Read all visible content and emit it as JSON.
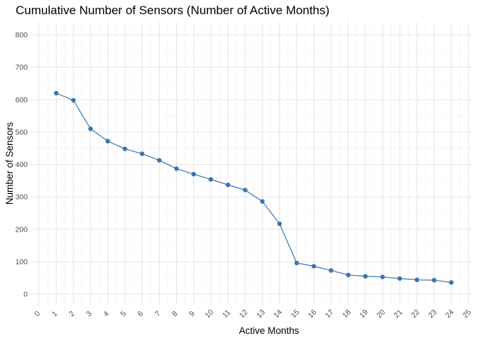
{
  "chart_data": {
    "type": "line",
    "title": "Cumulative Number of Sensors (Number of Active Months)",
    "xlabel": "Active Months",
    "ylabel": "Number of Sensors",
    "xlim": [
      0,
      25
    ],
    "ylim": [
      -30,
      840
    ],
    "x_ticks": [
      "0",
      "1",
      "2",
      "3",
      "4",
      "5",
      "6",
      "7",
      "8",
      "9",
      "10",
      "11",
      "12",
      "13",
      "14",
      "15",
      "16",
      "17",
      "18",
      "19",
      "20",
      "21",
      "22",
      "23",
      "24",
      "25"
    ],
    "y_ticks": [
      "0",
      "100",
      "200",
      "300",
      "400",
      "500",
      "600",
      "700",
      "800"
    ],
    "grid": true,
    "legend": "none",
    "series": [
      {
        "color": "#3a75b0",
        "x": [
          1,
          2,
          3,
          4,
          5,
          6,
          7,
          8,
          9,
          10,
          11,
          12,
          13,
          14,
          15,
          16,
          17,
          18,
          19,
          20,
          21,
          22,
          23,
          24
        ],
        "values": [
          620,
          598,
          510,
          472,
          448,
          433,
          413,
          387,
          370,
          354,
          337,
          321,
          286,
          217,
          96,
          86,
          73,
          59,
          55,
          53,
          48,
          44,
          43,
          36
        ]
      }
    ]
  }
}
